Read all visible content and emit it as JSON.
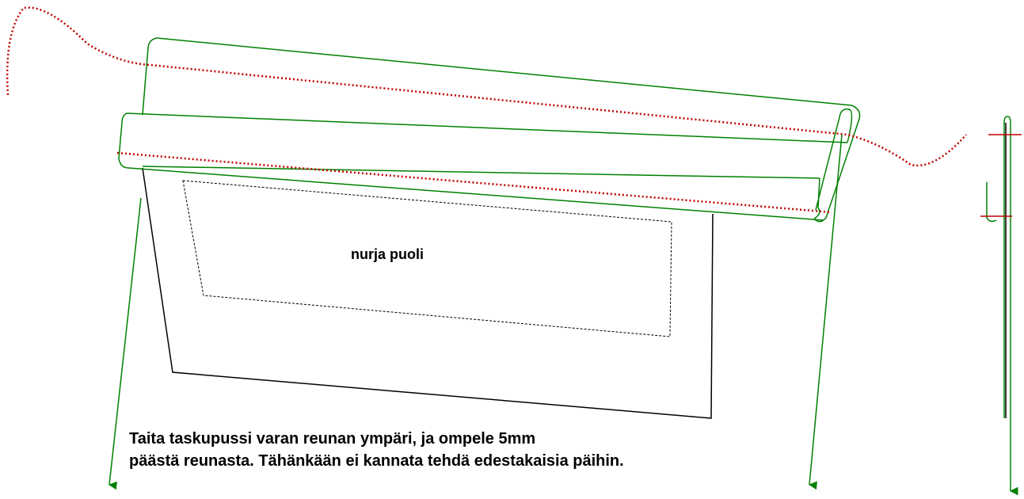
{
  "labels": {
    "side": "nurja puoli",
    "instruction_line1": "Taita taskupussi varan reunan ympäri, ja ompele 5mm",
    "instruction_line2": "päästä reunasta. Tähänkään ei kannata tehdä edestakaisia päihin."
  }
}
